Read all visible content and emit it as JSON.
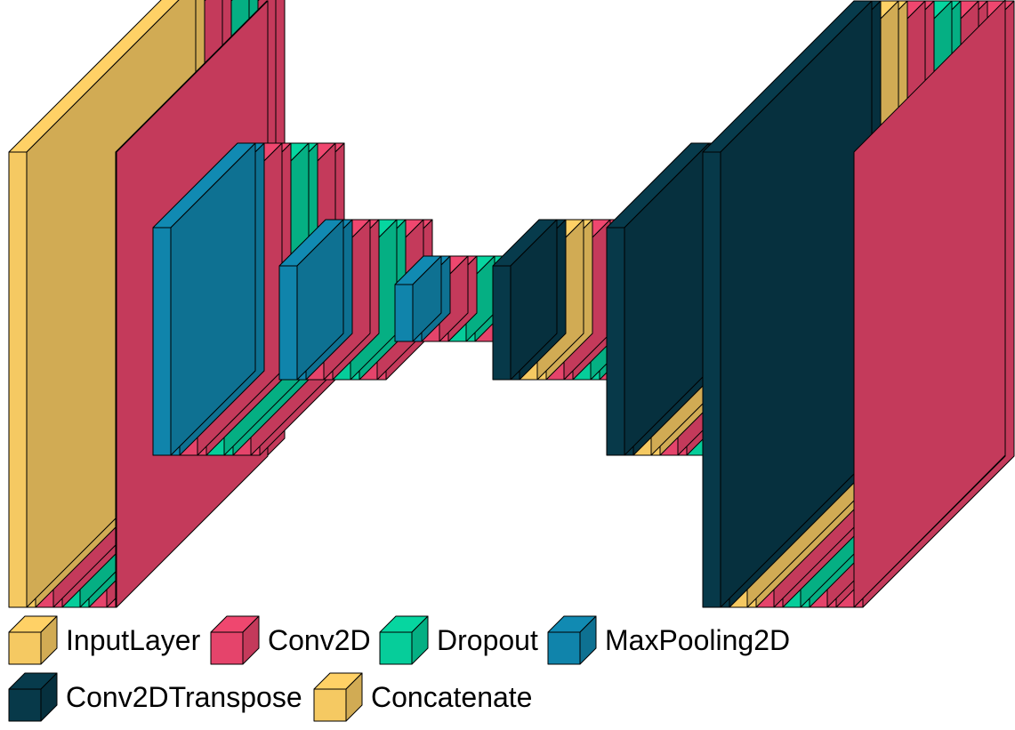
{
  "colors": {
    "InputLayer": "#FFD166",
    "Conv2D": "#EF476F",
    "Dropout": "#06D6A0",
    "MaxPooling2D": "#118AB2",
    "Conv2DTranspose": "#073B4C",
    "Concatenate": "#FFD166"
  },
  "network": {
    "stages": [
      {
        "layers": [
          "InputLayer",
          "Conv2D",
          "Dropout",
          "Conv2D"
        ]
      },
      {
        "layers": [
          "MaxPooling2D",
          "Conv2D",
          "Dropout",
          "Conv2D"
        ]
      },
      {
        "layers": [
          "MaxPooling2D",
          "Conv2D",
          "Dropout",
          "Conv2D"
        ]
      },
      {
        "layers": [
          "MaxPooling2D",
          "Conv2D",
          "Dropout",
          "Conv2D"
        ]
      },
      {
        "layers": [
          "Conv2DTranspose",
          "Concatenate",
          "Conv2D",
          "Dropout",
          "Conv2D"
        ]
      },
      {
        "layers": [
          "Conv2DTranspose",
          "Concatenate",
          "Conv2D",
          "Dropout"
        ]
      },
      {
        "layers": [
          "Conv2DTranspose",
          "Concatenate",
          "Conv2D",
          "Dropout",
          "Conv2D",
          "Conv2D"
        ]
      }
    ]
  },
  "legend": {
    "items": [
      {
        "label": "InputLayer",
        "icon": "cube-icon",
        "color": "#FFD166"
      },
      {
        "label": "Conv2D",
        "icon": "cube-icon",
        "color": "#EF476F"
      },
      {
        "label": "Dropout",
        "icon": "cube-icon",
        "color": "#06D6A0"
      },
      {
        "label": "MaxPooling2D",
        "icon": "cube-icon",
        "color": "#118AB2"
      },
      {
        "label": "Conv2DTranspose",
        "icon": "cube-icon",
        "color": "#073B4C"
      },
      {
        "label": "Concatenate",
        "icon": "cube-icon",
        "color": "#FFD166"
      }
    ]
  }
}
